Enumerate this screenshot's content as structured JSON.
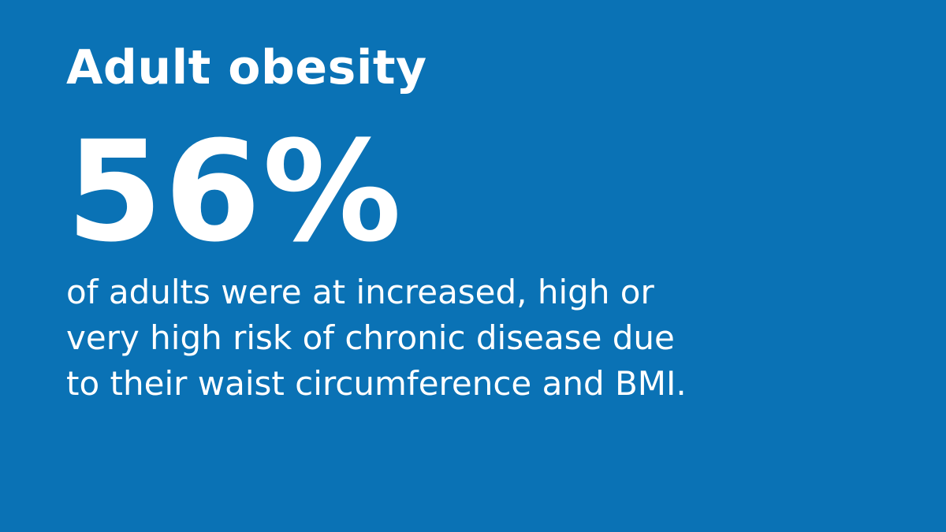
{
  "title": "Adult obesity",
  "stat": "56%",
  "caption_lines": [
    "of adults were at increased, high or",
    "very high risk of chronic disease due",
    "to their waist circumference and BMI."
  ],
  "colors": {
    "background": "#0a72b5",
    "text": "#ffffff"
  }
}
